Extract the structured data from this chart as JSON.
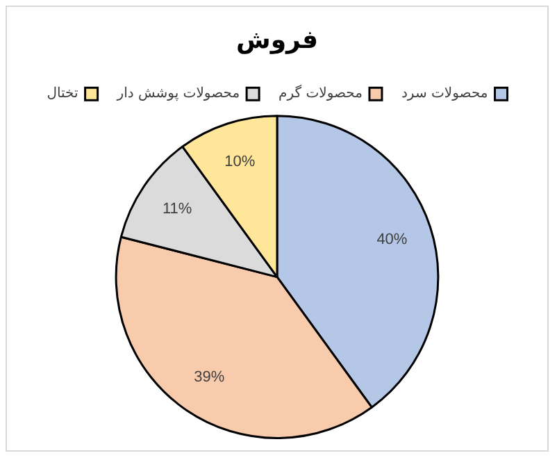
{
  "chart_data": {
    "type": "pie",
    "title": "فروش",
    "categories": [
      "محصولات سرد",
      "محصولات گرم",
      "محصولات پوشش دار",
      "تختال"
    ],
    "values": [
      40,
      39,
      11,
      10
    ],
    "colors": [
      "#b4c7e7",
      "#f8cbad",
      "#dbdbdb",
      "#ffe699"
    ],
    "value_labels": [
      "40%",
      "39%",
      "11%",
      "10%"
    ],
    "legend": "top"
  }
}
